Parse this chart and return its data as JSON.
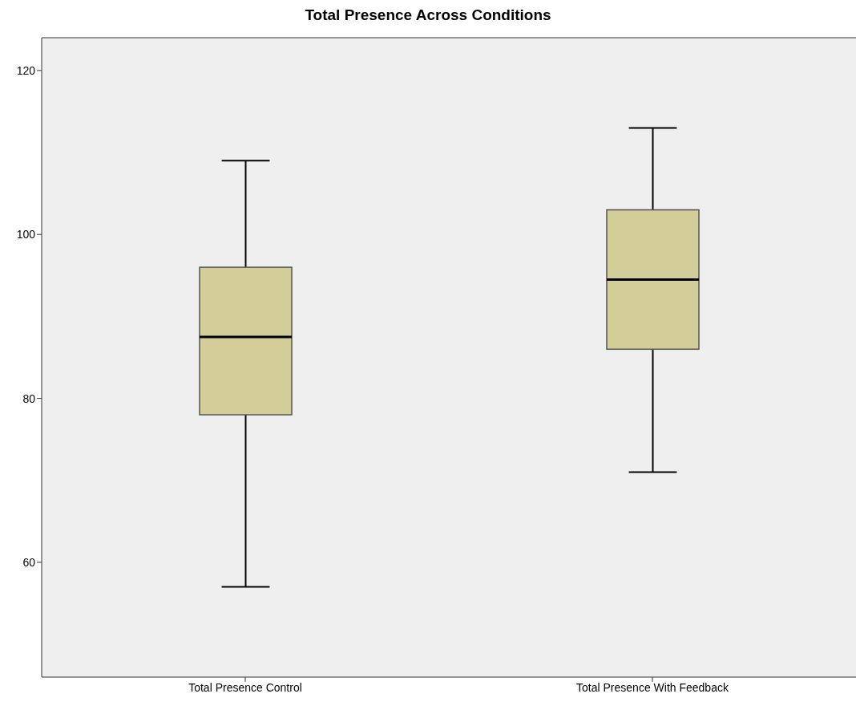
{
  "chart_data": {
    "type": "box",
    "title": "Total Presence Across Conditions",
    "categories": [
      "Total Presence Control",
      "Total Presence With Feedback"
    ],
    "boxes": [
      {
        "low": 57,
        "q1": 78,
        "median": 87.5,
        "q3": 96,
        "high": 109
      },
      {
        "low": 71,
        "q1": 86,
        "median": 94.5,
        "q3": 103,
        "high": 113
      }
    ],
    "color": "#d3ce98",
    "ylim": [
      46,
      124
    ],
    "yticks": [
      60,
      80,
      100,
      120
    ],
    "grid": false
  }
}
